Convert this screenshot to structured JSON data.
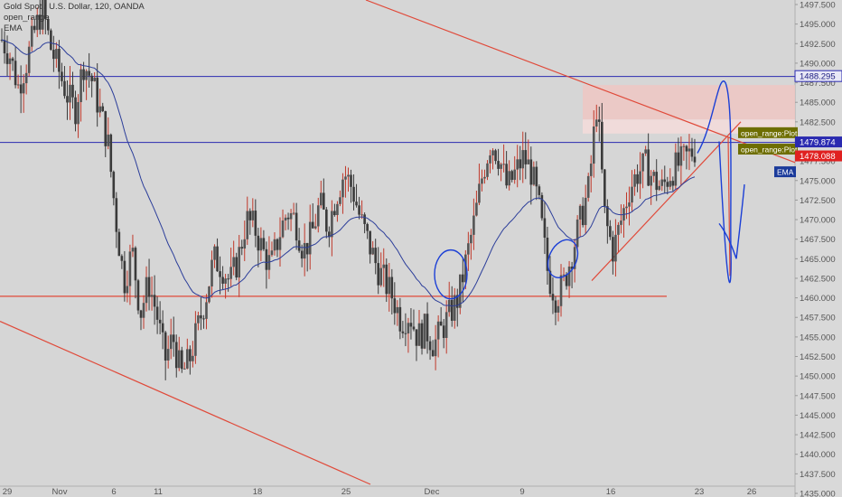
{
  "legend": {
    "symbol": "Gold Spot / U.S. Dollar, 120, OANDA",
    "study_1": "open_range",
    "study_2": "EMA"
  },
  "colors": {
    "background": "#d6d6d6",
    "candle": "#3a3a3a",
    "wick_up": "#c0392b",
    "ema": "#2c3e9a",
    "trendline": "#e04a3a",
    "level_line": "#2a2ab0",
    "annotation": "#1b3fd6",
    "badge_olive": "#6e6e00",
    "badge_blue": "#1a3a9a",
    "badge_red": "#e02020",
    "zone": "#efc7c3"
  },
  "chart_data": {
    "type": "candlestick",
    "y_axis_side": "right",
    "ylim": [
      1435.0,
      1500.0
    ],
    "y_ticks": [
      "1497.500",
      "1495.000",
      "1492.500",
      "1490.000",
      "1487.500",
      "1485.000",
      "1482.500",
      "1480.000",
      "1477.500",
      "1475.000",
      "1472.500",
      "1470.000",
      "1467.500",
      "1465.000",
      "1462.500",
      "1460.000",
      "1457.500",
      "1455.000",
      "1452.500",
      "1450.000",
      "1447.500",
      "1445.000",
      "1442.500",
      "1440.000",
      "1437.500",
      "1435.000"
    ],
    "x_ticks": [
      "29",
      "Nov",
      "6",
      "11",
      "18",
      "25",
      "Dec",
      "9",
      "16",
      "23",
      "26"
    ],
    "price_labels": [
      {
        "text": "1488.295",
        "value": 1488.295,
        "style": "blue-outline"
      },
      {
        "text": "1479.874",
        "value": 1479.874,
        "style": "blue-fill"
      },
      {
        "text": "1478.088",
        "value": 1478.088,
        "style": "red-fill"
      }
    ],
    "plot_labels": [
      {
        "text": "open_range:Plot",
        "value": 1481.0
      },
      {
        "text": "open_range:Plot",
        "value": 1478.9
      },
      {
        "text": "EMA",
        "value": 1476.0
      }
    ],
    "horizontal_levels": [
      1488.295,
      1479.874,
      1460.2
    ],
    "ohlc_anchors": [
      1493,
      1491,
      1487,
      1490,
      1494,
      1497,
      1492,
      1489,
      1486,
      1484,
      1490,
      1488,
      1484,
      1480,
      1470,
      1462,
      1466,
      1458,
      1462,
      1458,
      1452,
      1455,
      1450,
      1452,
      1456,
      1460,
      1465,
      1464,
      1462,
      1465,
      1470,
      1469,
      1466,
      1464,
      1468,
      1471,
      1470,
      1466,
      1468,
      1472,
      1469,
      1473,
      1476,
      1474,
      1470,
      1467,
      1464,
      1462,
      1460,
      1457,
      1458,
      1455,
      1456,
      1454,
      1456,
      1458,
      1460,
      1465,
      1470,
      1476,
      1480,
      1478,
      1474,
      1476,
      1478,
      1476,
      1471,
      1463,
      1460,
      1462,
      1466,
      1470,
      1474,
      1485,
      1470,
      1466,
      1470,
      1474,
      1476,
      1477,
      1475,
      1474,
      1476,
      1477,
      1478,
      1479
    ]
  }
}
